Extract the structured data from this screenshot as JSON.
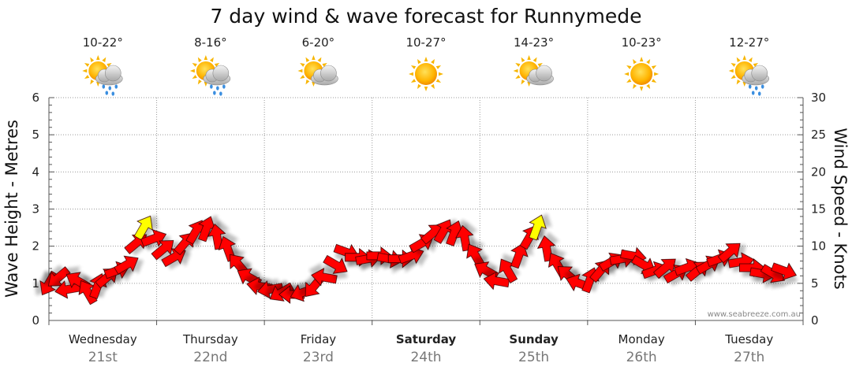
{
  "chart_data": {
    "type": "scatter",
    "title": "7 day wind & wave forecast for Runnymede",
    "ylabel_left": "Wave Height - Metres",
    "ylabel_right": "Wind Speed - Knots",
    "ylim_left": [
      0,
      6
    ],
    "ylim_right": [
      0,
      30
    ],
    "yticks_left": [
      "0",
      "1",
      "2",
      "3",
      "4",
      "5",
      "6"
    ],
    "yticks_right": [
      "0",
      "5",
      "10",
      "15",
      "20",
      "25",
      "30"
    ],
    "watermark": "www.seabreeze.com.au",
    "days": [
      {
        "name": "Wednesday",
        "date": "21st",
        "temp": "10-22°",
        "icon": "sun-cloud-rain-icon",
        "bold": false
      },
      {
        "name": "Thursday",
        "date": "22nd",
        "temp": "8-16°",
        "icon": "sun-cloud-rain-icon",
        "bold": false
      },
      {
        "name": "Friday",
        "date": "23rd",
        "temp": "6-20°",
        "icon": "sun-cloud-icon",
        "bold": false
      },
      {
        "name": "Saturday",
        "date": "24th",
        "temp": "10-27°",
        "icon": "sun-icon",
        "bold": true
      },
      {
        "name": "Sunday",
        "date": "25th",
        "temp": "14-23°",
        "icon": "sun-cloud-icon",
        "bold": true
      },
      {
        "name": "Monday",
        "date": "26th",
        "temp": "10-23°",
        "icon": "sun-icon",
        "bold": false
      },
      {
        "name": "Tuesday",
        "date": "27th",
        "temp": "12-27°",
        "icon": "sun-cloud-rain-icon",
        "bold": false
      }
    ],
    "series": [
      {
        "unit": "knots",
        "arrow_color": "#ff0000",
        "gust_color": "#ffff00",
        "points": [
          {
            "t": 0.0,
            "speed": 5.0,
            "dir": 30
          },
          {
            "t": 0.09,
            "speed": 5.8,
            "dir": 50
          },
          {
            "t": 0.18,
            "speed": 4.2,
            "dir": 80
          },
          {
            "t": 0.27,
            "speed": 5.3,
            "dir": 120
          },
          {
            "t": 0.36,
            "speed": 3.8,
            "dir": 150
          },
          {
            "t": 0.45,
            "speed": 4.6,
            "dir": 200
          },
          {
            "t": 0.54,
            "speed": 5.8,
            "dir": 230
          },
          {
            "t": 0.63,
            "speed": 6.7,
            "dir": 250
          },
          {
            "t": 0.72,
            "speed": 7.5,
            "dir": 240
          },
          {
            "t": 0.81,
            "speed": 10.4,
            "dir": 230
          },
          {
            "t": 0.88,
            "speed": 12.5,
            "dir": 210,
            "gust": true
          },
          {
            "t": 0.97,
            "speed": 11.0,
            "dir": 250
          },
          {
            "t": 1.06,
            "speed": 9.6,
            "dir": 230
          },
          {
            "t": 1.16,
            "speed": 8.5,
            "dir": 240
          },
          {
            "t": 1.26,
            "speed": 10.4,
            "dir": 220
          },
          {
            "t": 1.36,
            "speed": 11.9,
            "dir": 210
          },
          {
            "t": 1.46,
            "speed": 12.3,
            "dir": 200
          },
          {
            "t": 1.56,
            "speed": 11.2,
            "dir": 170
          },
          {
            "t": 1.66,
            "speed": 9.6,
            "dir": 160
          },
          {
            "t": 1.76,
            "speed": 7.5,
            "dir": 140
          },
          {
            "t": 1.86,
            "speed": 5.8,
            "dir": 120
          },
          {
            "t": 1.96,
            "speed": 4.6,
            "dir": 100
          },
          {
            "t": 2.06,
            "speed": 4.2,
            "dir": 80
          },
          {
            "t": 2.16,
            "speed": 3.8,
            "dir": 60
          },
          {
            "t": 2.26,
            "speed": 3.5,
            "dir": 90
          },
          {
            "t": 2.36,
            "speed": 3.8,
            "dir": 70
          },
          {
            "t": 2.46,
            "speed": 4.6,
            "dir": 40
          },
          {
            "t": 2.56,
            "speed": 5.8,
            "dir": 100
          },
          {
            "t": 2.66,
            "speed": 7.5,
            "dir": 300
          },
          {
            "t": 2.76,
            "speed": 9.2,
            "dir": 290
          },
          {
            "t": 2.86,
            "speed": 8.5,
            "dir": 270
          },
          {
            "t": 2.96,
            "speed": 8.3,
            "dir": 260
          },
          {
            "t": 3.06,
            "speed": 8.7,
            "dir": 270
          },
          {
            "t": 3.16,
            "speed": 8.3,
            "dir": 280
          },
          {
            "t": 3.26,
            "speed": 8.3,
            "dir": 270
          },
          {
            "t": 3.36,
            "speed": 8.7,
            "dir": 250
          },
          {
            "t": 3.46,
            "speed": 10.4,
            "dir": 240
          },
          {
            "t": 3.56,
            "speed": 11.7,
            "dir": 230
          },
          {
            "t": 3.66,
            "speed": 12.0,
            "dir": 210
          },
          {
            "t": 3.76,
            "speed": 11.7,
            "dir": 200
          },
          {
            "t": 3.86,
            "speed": 11.0,
            "dir": 170
          },
          {
            "t": 3.96,
            "speed": 8.7,
            "dir": 150
          },
          {
            "t": 4.06,
            "speed": 6.7,
            "dir": 120
          },
          {
            "t": 4.16,
            "speed": 5.3,
            "dir": 100
          },
          {
            "t": 4.26,
            "speed": 6.7,
            "dir": 150
          },
          {
            "t": 4.36,
            "speed": 8.7,
            "dir": 200
          },
          {
            "t": 4.46,
            "speed": 11.2,
            "dir": 210
          },
          {
            "t": 4.53,
            "speed": 12.5,
            "dir": 200,
            "gust": true
          },
          {
            "t": 4.62,
            "speed": 9.6,
            "dir": 170
          },
          {
            "t": 4.72,
            "speed": 7.5,
            "dir": 150
          },
          {
            "t": 4.82,
            "speed": 6.1,
            "dir": 130
          },
          {
            "t": 4.92,
            "speed": 5.0,
            "dir": 110
          },
          {
            "t": 5.02,
            "speed": 5.4,
            "dir": 200
          },
          {
            "t": 5.12,
            "speed": 6.7,
            "dir": 220
          },
          {
            "t": 5.22,
            "speed": 7.9,
            "dir": 240
          },
          {
            "t": 5.32,
            "speed": 8.3,
            "dir": 260
          },
          {
            "t": 5.42,
            "speed": 8.7,
            "dir": 280
          },
          {
            "t": 5.52,
            "speed": 7.5,
            "dir": 300
          },
          {
            "t": 5.62,
            "speed": 6.7,
            "dir": 250
          },
          {
            "t": 5.72,
            "speed": 7.1,
            "dir": 230
          },
          {
            "t": 5.82,
            "speed": 6.3,
            "dir": 240
          },
          {
            "t": 5.92,
            "speed": 7.1,
            "dir": 250
          },
          {
            "t": 6.02,
            "speed": 6.7,
            "dir": 230
          },
          {
            "t": 6.12,
            "speed": 7.5,
            "dir": 240
          },
          {
            "t": 6.22,
            "speed": 8.3,
            "dir": 250
          },
          {
            "t": 6.32,
            "speed": 9.2,
            "dir": 230
          },
          {
            "t": 6.42,
            "speed": 7.9,
            "dir": 260
          },
          {
            "t": 6.52,
            "speed": 7.1,
            "dir": 270
          },
          {
            "t": 6.62,
            "speed": 6.3,
            "dir": 280
          },
          {
            "t": 6.72,
            "speed": 6.3,
            "dir": 300
          },
          {
            "t": 6.82,
            "speed": 6.7,
            "dir": 290
          }
        ]
      }
    ]
  }
}
